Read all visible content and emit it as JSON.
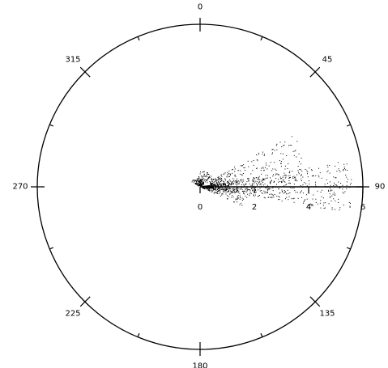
{
  "chart_data": {
    "type": "scatter",
    "coordinate_system": "polar",
    "title": "",
    "angle_unit": "degrees",
    "angle_zero": "top",
    "angle_direction": "clockwise",
    "angle_tick_interval": 22.5,
    "angle_labels": [
      {
        "angle": 0,
        "text": "0"
      },
      {
        "angle": 45,
        "text": "45"
      },
      {
        "angle": 90,
        "text": "90"
      },
      {
        "angle": 135,
        "text": "135"
      },
      {
        "angle": 180,
        "text": "180"
      },
      {
        "angle": 225,
        "text": "225"
      },
      {
        "angle": 270,
        "text": "270"
      },
      {
        "angle": 315,
        "text": "315"
      }
    ],
    "radial_axis": {
      "direction_deg": 90,
      "range": [
        0,
        6
      ],
      "ticks": [
        0,
        2,
        4,
        6
      ],
      "tick_labels": [
        "0",
        "2",
        "4",
        "6"
      ]
    },
    "grid": false,
    "color": "#000000",
    "point_cloud": {
      "description": "dense scatter concentrated near the origin, spreading toward angle 90",
      "clusters": [
        {
          "angle_range": [
            80,
            100
          ],
          "radius_range": [
            0.1,
            5.6
          ],
          "count": 700
        },
        {
          "angle_range": [
            60,
            88
          ],
          "radius_range": [
            0.4,
            4.0
          ],
          "count": 260
        },
        {
          "angle_range": [
            92,
            115
          ],
          "radius_range": [
            0.1,
            1.8
          ],
          "count": 160
        },
        {
          "angle_range": [
            0,
            60
          ],
          "radius_range": [
            0.05,
            0.6
          ],
          "count": 120
        },
        {
          "angle_range": [
            300,
            360
          ],
          "radius_range": [
            0.05,
            0.4
          ],
          "count": 80
        }
      ]
    }
  }
}
